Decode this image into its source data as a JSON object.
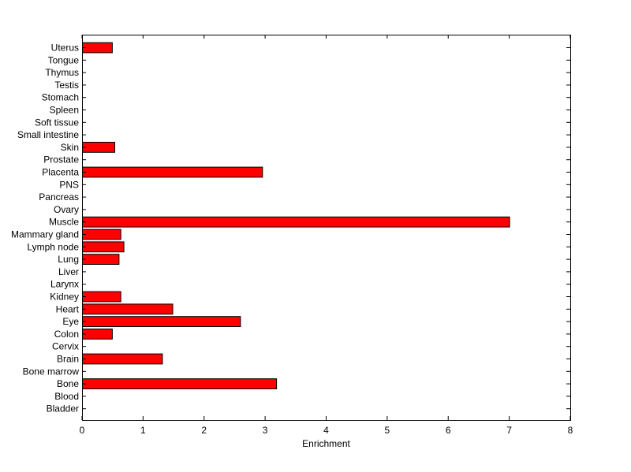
{
  "chart_data": {
    "type": "bar",
    "orientation": "horizontal",
    "title": "",
    "xlabel": "Enrichment",
    "ylabel": "",
    "xlim": [
      0,
      8
    ],
    "x_ticks": [
      "0",
      "1",
      "2",
      "3",
      "4",
      "5",
      "6",
      "7",
      "8"
    ],
    "grid": false,
    "legend": "none",
    "bar_color": "#ff0000",
    "categories": [
      "Uterus",
      "Tongue",
      "Thymus",
      "Testis",
      "Stomach",
      "Spleen",
      "Soft tissue",
      "Small intestine",
      "Skin",
      "Prostate",
      "Placenta",
      "PNS",
      "Pancreas",
      "Ovary",
      "Muscle",
      "Mammary gland",
      "Lymph node",
      "Lung",
      "Liver",
      "Larynx",
      "Kidney",
      "Heart",
      "Eye",
      "Colon",
      "Cervix",
      "Brain",
      "Bone marrow",
      "Bone",
      "Blood",
      "Bladder"
    ],
    "values": [
      0.49,
      0,
      0,
      0,
      0,
      0,
      0,
      0,
      0.53,
      0,
      2.95,
      0,
      0,
      0,
      7.0,
      0.63,
      0.68,
      0.6,
      0,
      0,
      0.63,
      1.48,
      2.59,
      0.49,
      0,
      1.31,
      0,
      3.18,
      0,
      0
    ]
  }
}
